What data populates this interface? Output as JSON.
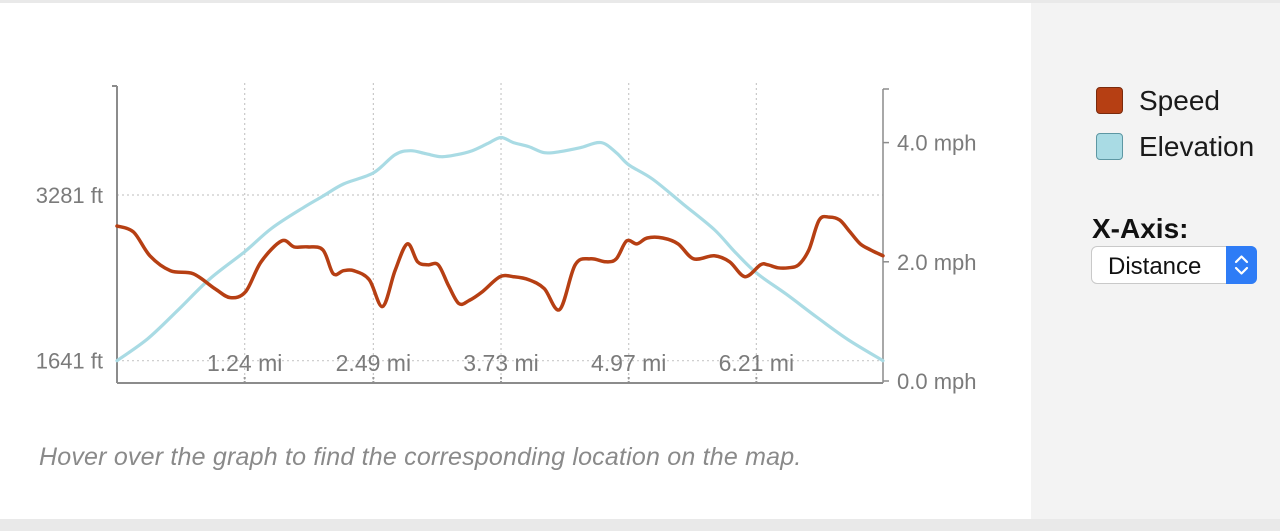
{
  "chart_data": {
    "type": "line",
    "x_unit": "mi",
    "x_ticks": [
      "1.24 mi",
      "2.49 mi",
      "3.73 mi",
      "4.97 mi",
      "6.21 mi"
    ],
    "x_tick_values": [
      1.24,
      2.49,
      3.73,
      4.97,
      6.21
    ],
    "xlim": [
      0,
      7.44
    ],
    "left_axis": {
      "ticks": [
        "3281 ft",
        "1641 ft"
      ],
      "tick_values": [
        3281,
        1641
      ],
      "ylim": [
        1440,
        4390
      ]
    },
    "right_axis": {
      "ticks": [
        "4.0 mph",
        "2.0 mph",
        "0.0 mph"
      ],
      "tick_values": [
        4.0,
        2.0,
        0.0
      ],
      "ylim": [
        0,
        5.0
      ]
    },
    "grid": true,
    "legend_position": "right",
    "series": [
      {
        "name": "Speed",
        "color": "#b63f13",
        "axis": "right",
        "x": [
          0,
          0.16,
          0.32,
          0.52,
          0.74,
          0.95,
          1.1,
          1.25,
          1.4,
          1.6,
          1.72,
          1.85,
          2.0,
          2.1,
          2.2,
          2.3,
          2.45,
          2.58,
          2.7,
          2.82,
          2.92,
          3.02,
          3.12,
          3.22,
          3.32,
          3.42,
          3.55,
          3.72,
          3.85,
          4.0,
          4.15,
          4.3,
          4.45,
          4.6,
          4.75,
          4.85,
          4.95,
          5.05,
          5.15,
          5.3,
          5.45,
          5.6,
          5.8,
          5.95,
          6.1,
          6.25,
          6.32,
          6.42,
          6.52,
          6.62,
          6.72,
          6.82,
          6.92,
          7.02,
          7.12,
          7.22,
          7.32,
          7.44
        ],
        "values": [
          2.6,
          2.5,
          2.1,
          1.85,
          1.8,
          1.55,
          1.4,
          1.5,
          2.0,
          2.35,
          2.25,
          2.25,
          2.2,
          1.8,
          1.85,
          1.85,
          1.7,
          1.25,
          1.85,
          2.3,
          2.0,
          1.95,
          1.95,
          1.6,
          1.3,
          1.35,
          1.5,
          1.75,
          1.75,
          1.7,
          1.55,
          1.2,
          1.95,
          2.05,
          2.0,
          2.05,
          2.35,
          2.3,
          2.4,
          2.4,
          2.3,
          2.05,
          2.1,
          2.0,
          1.75,
          1.95,
          1.95,
          1.9,
          1.9,
          1.95,
          2.2,
          2.7,
          2.75,
          2.7,
          2.5,
          2.3,
          2.2,
          2.1
        ]
      },
      {
        "name": "Elevation",
        "color": "#a9dbe4",
        "axis": "left",
        "x": [
          0,
          0.3,
          0.6,
          0.9,
          1.24,
          1.5,
          1.8,
          2.0,
          2.2,
          2.49,
          2.7,
          2.85,
          3.0,
          3.15,
          3.3,
          3.45,
          3.6,
          3.73,
          3.85,
          4.0,
          4.15,
          4.3,
          4.5,
          4.7,
          4.85,
          4.97,
          5.2,
          5.5,
          5.8,
          6.0,
          6.21,
          6.5,
          6.8,
          7.1,
          7.44
        ],
        "values": [
          1641,
          1860,
          2150,
          2450,
          2720,
          2950,
          3150,
          3270,
          3390,
          3500,
          3680,
          3720,
          3690,
          3660,
          3680,
          3720,
          3790,
          3850,
          3800,
          3760,
          3700,
          3710,
          3750,
          3800,
          3700,
          3580,
          3440,
          3190,
          2940,
          2720,
          2510,
          2300,
          2070,
          1850,
          1641
        ]
      }
    ]
  },
  "hint_text": "Hover over the graph to find the corresponding location on the map.",
  "legend": {
    "items": [
      {
        "label": "Speed",
        "color": "#b63f13"
      },
      {
        "label": "Elevation",
        "color": "#a9dbe4"
      }
    ]
  },
  "xaxis_control": {
    "label": "X-Axis:",
    "selected": "Distance"
  }
}
